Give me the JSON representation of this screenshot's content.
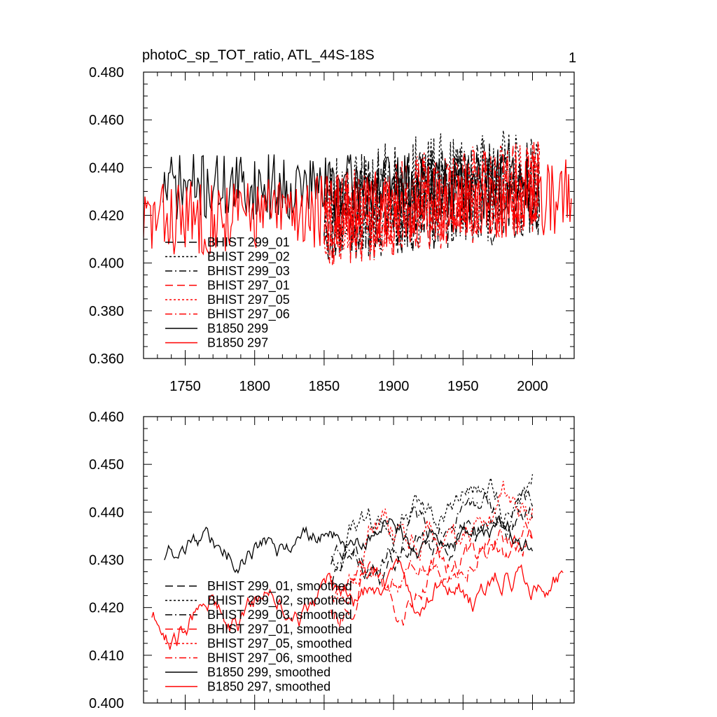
{
  "figure": {
    "title_left": "photoC_sp_TOT_ratio, ATL_44S-18S",
    "title_right": "1"
  },
  "chart_data": [
    {
      "type": "line",
      "title": "photoC_sp_TOT_ratio, ATL_44S-18S",
      "xlabel": "",
      "ylabel": "",
      "xlim": [
        1720,
        2030
      ],
      "ylim": [
        0.36,
        0.48
      ],
      "x_ticks": [
        1750,
        1800,
        1850,
        1900,
        1950,
        2000
      ],
      "x_tick_labels": [
        "1750",
        "1800",
        "1850",
        "1900",
        "1950",
        "2000"
      ],
      "y_ticks": [
        0.36,
        0.38,
        0.4,
        0.42,
        0.44,
        0.46,
        0.48
      ],
      "y_tick_labels": [
        "0.360",
        "0.380",
        "0.400",
        "0.420",
        "0.440",
        "0.460",
        "0.480"
      ],
      "legend_position": "bottom-left",
      "series": [
        {
          "name": "BHIST 299_01",
          "color": "#000000",
          "dash": "long-dash",
          "x_start": 1850,
          "x_end": 2005,
          "base": [
            0.42,
            0.432
          ],
          "amp": 0.022,
          "seed": 11
        },
        {
          "name": "BHIST 299_02",
          "color": "#000000",
          "dash": "dot",
          "x_start": 1850,
          "x_end": 2005,
          "base": [
            0.424,
            0.436
          ],
          "amp": 0.024,
          "seed": 23
        },
        {
          "name": "BHIST 299_03",
          "color": "#000000",
          "dash": "dash-dot",
          "x_start": 1850,
          "x_end": 2005,
          "base": [
            0.422,
            0.433
          ],
          "amp": 0.022,
          "seed": 37
        },
        {
          "name": "BHIST 297_01",
          "color": "#ff0000",
          "dash": "long-dash",
          "x_start": 1850,
          "x_end": 2005,
          "base": [
            0.418,
            0.432
          ],
          "amp": 0.02,
          "seed": 41
        },
        {
          "name": "BHIST 297_05",
          "color": "#ff0000",
          "dash": "dot",
          "x_start": 1850,
          "x_end": 2005,
          "base": [
            0.42,
            0.435
          ],
          "amp": 0.02,
          "seed": 53
        },
        {
          "name": "BHIST 297_06",
          "color": "#ff0000",
          "dash": "dash-dot",
          "x_start": 1850,
          "x_end": 2005,
          "base": [
            0.418,
            0.432
          ],
          "amp": 0.02,
          "seed": 67
        },
        {
          "name": "B1850 299",
          "color": "#000000",
          "dash": "solid",
          "x_start": 1734,
          "x_end": 2005,
          "base": [
            0.432,
            0.432
          ],
          "amp": 0.014,
          "seed": 71
        },
        {
          "name": "B1850 297",
          "color": "#ff0000",
          "dash": "solid",
          "x_start": 1720,
          "x_end": 2028,
          "base": [
            0.418,
            0.428
          ],
          "amp": 0.016,
          "seed": 83
        }
      ]
    },
    {
      "type": "line",
      "title": "",
      "xlabel": "",
      "ylabel": "",
      "xlim": [
        1720,
        2030
      ],
      "ylim": [
        0.4,
        0.46
      ],
      "x_ticks": [
        1750,
        1800,
        1850,
        1900,
        1950,
        2000
      ],
      "y_ticks": [
        0.4,
        0.41,
        0.42,
        0.43,
        0.44,
        0.45,
        0.46
      ],
      "y_tick_labels": [
        "0.400",
        "0.410",
        "0.420",
        "0.430",
        "0.440",
        "0.450",
        "0.460"
      ],
      "legend_position": "bottom-left",
      "series": [
        {
          "name": "BHIST 299_01, smoothed",
          "color": "#000000",
          "dash": "long-dash",
          "x_start": 1855,
          "x_end": 2000,
          "base": [
            0.428,
            0.44
          ],
          "amp": 0.006,
          "seed": 111
        },
        {
          "name": "BHIST 299_02, smoothed",
          "color": "#000000",
          "dash": "dot",
          "x_start": 1855,
          "x_end": 2000,
          "base": [
            0.434,
            0.446
          ],
          "amp": 0.007,
          "seed": 123
        },
        {
          "name": "BHIST 299_03, smoothed",
          "color": "#000000",
          "dash": "dash-dot",
          "x_start": 1855,
          "x_end": 2000,
          "base": [
            0.43,
            0.442
          ],
          "amp": 0.006,
          "seed": 137
        },
        {
          "name": "BHIST 297_01, smoothed",
          "color": "#ff0000",
          "dash": "long-dash",
          "x_start": 1855,
          "x_end": 2000,
          "base": [
            0.422,
            0.436
          ],
          "amp": 0.007,
          "seed": 141
        },
        {
          "name": "BHIST 297_05, smoothed",
          "color": "#ff0000",
          "dash": "dot",
          "x_start": 1855,
          "x_end": 2000,
          "base": [
            0.428,
            0.444
          ],
          "amp": 0.008,
          "seed": 153
        },
        {
          "name": "BHIST 297_06, smoothed",
          "color": "#ff0000",
          "dash": "dash-dot",
          "x_start": 1855,
          "x_end": 2000,
          "base": [
            0.425,
            0.437
          ],
          "amp": 0.006,
          "seed": 167
        },
        {
          "name": "B1850 299, smoothed",
          "color": "#000000",
          "dash": "solid",
          "x_start": 1735,
          "x_end": 2000,
          "base": [
            0.432,
            0.436
          ],
          "amp": 0.005,
          "seed": 171
        },
        {
          "name": "B1850 297, smoothed",
          "color": "#ff0000",
          "dash": "solid",
          "x_start": 1726,
          "x_end": 2022,
          "base": [
            0.417,
            0.428
          ],
          "amp": 0.006,
          "seed": 183
        }
      ]
    }
  ]
}
